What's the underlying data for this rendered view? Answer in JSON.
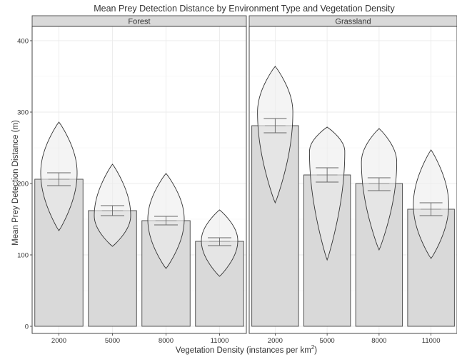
{
  "chart_data": {
    "type": "bar",
    "title": "Mean Prey Detection Distance by Environment Type and Vegetation Density",
    "xlabel": "Vegetation Density (instances per km",
    "xlabel_sup": "2",
    "xlabel_close": ")",
    "ylabel": "Mean Prey Detection Distance (m)",
    "ylim": [
      -10,
      420
    ],
    "yticks": [
      0,
      100,
      200,
      300,
      400
    ],
    "grid": true,
    "categories": [
      "2000",
      "5000",
      "8000",
      "11000"
    ],
    "overlays": [
      "violin",
      "error_bar"
    ],
    "colors": {
      "bar_fill": "#d9d9d9",
      "bar_stroke": "#444444",
      "violin_fill": "#ececec",
      "violin_stroke": "#333333",
      "errorbar": "#666666",
      "strip": "#d9d9d9",
      "grid": "#ebebeb"
    },
    "panels": [
      {
        "name": "Forest",
        "means": [
          206,
          162,
          148,
          119
        ],
        "errorbars": [
          [
            197,
            215
          ],
          [
            155,
            169
          ],
          [
            142,
            154
          ],
          [
            113,
            124
          ]
        ],
        "violin_ranges": [
          [
            134,
            286
          ],
          [
            112,
            227
          ],
          [
            81,
            214
          ],
          [
            70,
            163
          ]
        ],
        "violin_mode_values": [
          215,
          155,
          150,
          120
        ]
      },
      {
        "name": "Grassland",
        "means": [
          281,
          212,
          200,
          164
        ],
        "errorbars": [
          [
            271,
            291
          ],
          [
            202,
            222
          ],
          [
            190,
            208
          ],
          [
            155,
            173
          ]
        ],
        "violin_ranges": [
          [
            173,
            364
          ],
          [
            93,
            279
          ],
          [
            107,
            277
          ],
          [
            95,
            247
          ]
        ],
        "violin_mode_values": [
          300,
          245,
          230,
          170
        ]
      }
    ]
  }
}
